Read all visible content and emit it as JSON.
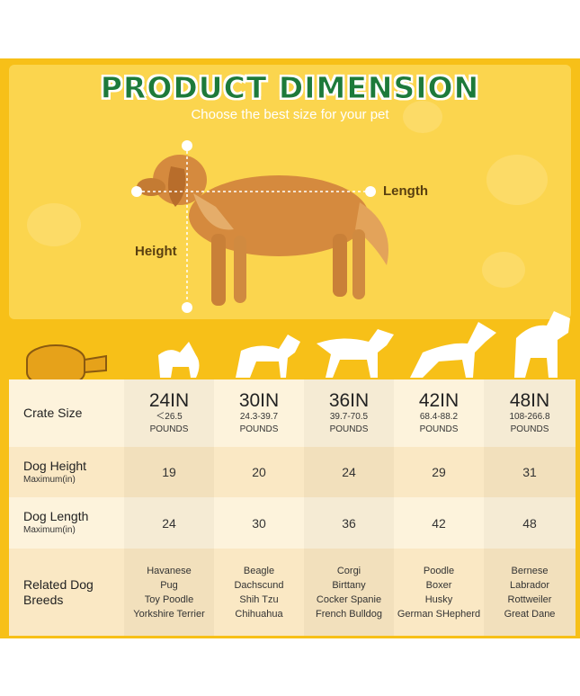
{
  "header": {
    "title": "PRODUCT DIMENSION",
    "subtitle": "Choose the best size for your pet"
  },
  "labels": {
    "length": "Length",
    "height": "Height"
  },
  "table": {
    "columns": [
      {
        "size": "24IN",
        "weight": "＜26.5",
        "unit": "POUNDS"
      },
      {
        "size": "30IN",
        "weight": "24.3-39.7",
        "unit": "POUNDS"
      },
      {
        "size": "36IN",
        "weight": "39.7-70.5",
        "unit": "POUNDS"
      },
      {
        "size": "42IN",
        "weight": "68.4-88.2",
        "unit": "POUNDS"
      },
      {
        "size": "48IN",
        "weight": "108-266.8",
        "unit": "POUNDS"
      }
    ],
    "header_label": "Crate Size",
    "rows": [
      {
        "label": "Dog Height",
        "sublabel": "Maximum(in)",
        "cells": [
          "19",
          "20",
          "24",
          "29",
          "31"
        ]
      },
      {
        "label": "Dog Length",
        "sublabel": "Maximum(in)",
        "cells": [
          "24",
          "30",
          "36",
          "42",
          "48"
        ]
      }
    ],
    "breeds": {
      "label": "Related Dog Breeds",
      "cells": [
        [
          "Havanese",
          "Pug",
          "Toy Poodle",
          "Yorkshire Terrier"
        ],
        [
          "Beagle",
          "Dachscund",
          "Shih Tzu",
          "Chihuahua"
        ],
        [
          "Corgi",
          "Birttany",
          "Cocker Spanie",
          "French Bulldog"
        ],
        [
          "Poodle",
          "Boxer",
          "Husky",
          "German SHepherd"
        ],
        [
          "Bernese",
          "Labrador",
          "Rottweiler",
          "Great Dane"
        ]
      ]
    }
  }
}
